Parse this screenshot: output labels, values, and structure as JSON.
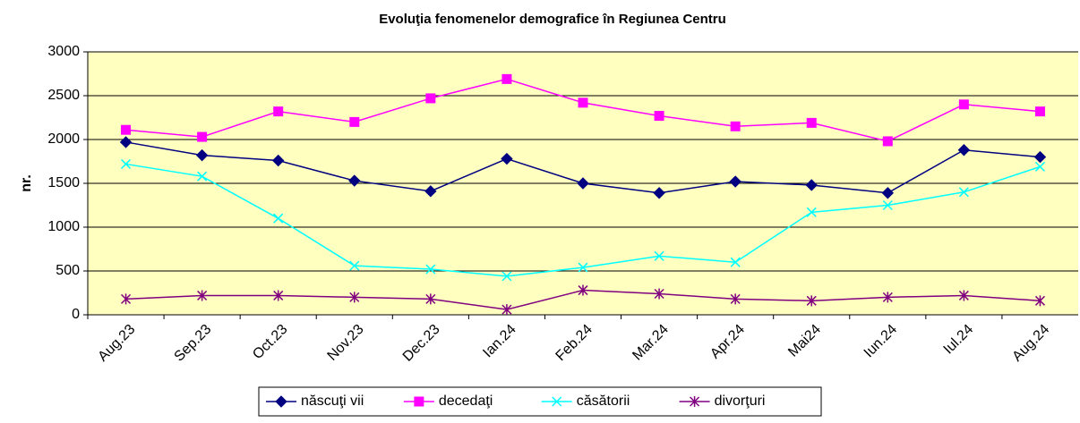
{
  "chart_data": {
    "type": "line",
    "title": "Evoluţia fenomenelor demografice în Regiunea Centru",
    "y_label": "nr.",
    "categories": [
      "Aug.23",
      "Sep.23",
      "Oct.23",
      "Nov.23",
      "Dec.23",
      "Ian.24",
      "Feb.24",
      "Mar.24",
      "Apr.24",
      "Mai24",
      "Iun.24",
      "Iul.24",
      "Aug.24"
    ],
    "series": [
      {
        "name": "născuţi vii",
        "color": "#000080",
        "marker": "diamond",
        "values": [
          1970,
          1820,
          1760,
          1530,
          1410,
          1780,
          1500,
          1390,
          1520,
          1480,
          1390,
          1880,
          1800
        ]
      },
      {
        "name": "decedaţi",
        "color": "#ff00ff",
        "marker": "square",
        "values": [
          2110,
          2030,
          2320,
          2200,
          2470,
          2690,
          2420,
          2270,
          2150,
          2190,
          1980,
          2400,
          2320
        ]
      },
      {
        "name": "căsătorii",
        "color": "#00ffff",
        "marker": "x",
        "values": [
          1720,
          1580,
          1100,
          560,
          520,
          440,
          540,
          670,
          600,
          1170,
          1250,
          1400,
          1690
        ]
      },
      {
        "name": "divorţuri",
        "color": "#800080",
        "marker": "star",
        "values": [
          180,
          220,
          220,
          200,
          180,
          60,
          280,
          240,
          180,
          160,
          200,
          220,
          160
        ]
      }
    ],
    "ylim": [
      0,
      3000
    ],
    "yticks": [
      0,
      500,
      1000,
      1500,
      2000,
      2500,
      3000
    ],
    "grid": true,
    "legend": "bottom",
    "plot_background": "#ffffc0"
  }
}
